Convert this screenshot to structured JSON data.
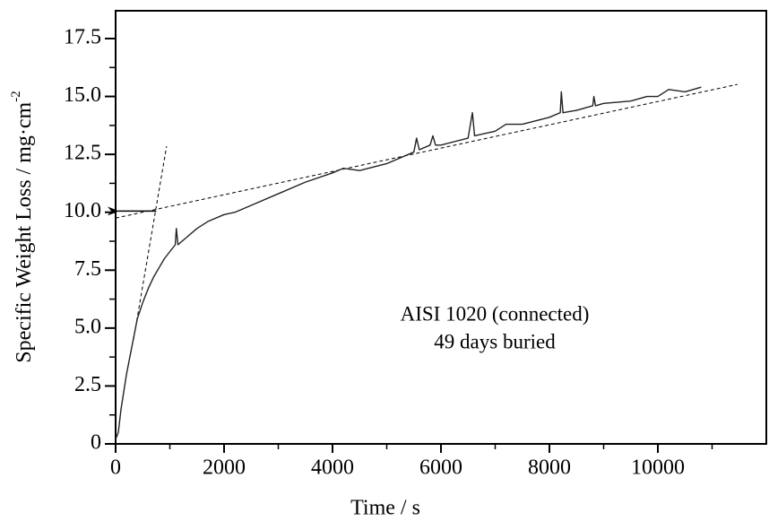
{
  "chart_data": {
    "type": "line",
    "xlabel": "Time / s",
    "ylabel": "Specific Weight Loss / mg·cm",
    "ylabel_superscript": "-2",
    "annotations": [
      "AISI 1020 (connected)",
      "49 days buried"
    ],
    "xlim": [
      0,
      12000
    ],
    "ylim": [
      0,
      18.7
    ],
    "xticks": [
      0,
      2000,
      4000,
      6000,
      8000,
      10000
    ],
    "xminorticks": [
      1000,
      3000,
      5000,
      7000,
      9000,
      11000
    ],
    "yticks": [
      0,
      2.5,
      {
        "value": 5,
        "label": "5.0"
      },
      7.5,
      {
        "value": 10,
        "label": "10.0"
      },
      12.5,
      {
        "value": 15,
        "label": "15.0"
      },
      17.5
    ],
    "yminorticks": [
      1.25,
      3.75,
      6.25,
      8.75,
      11.25,
      13.75,
      16.25
    ],
    "color": "#222222",
    "x": [
      0,
      50,
      100,
      200,
      300,
      400,
      500,
      600,
      700,
      800,
      900,
      1000,
      1100,
      1120,
      1150,
      1300,
      1500,
      1700,
      2000,
      2200,
      2500,
      3000,
      3500,
      4000,
      4200,
      4500,
      5000,
      5500,
      5550,
      5600,
      5800,
      5850,
      5900,
      6000,
      6500,
      6580,
      6620,
      7000,
      7200,
      7500,
      8000,
      8200,
      8220,
      8250,
      8500,
      8800,
      8820,
      8850,
      9000,
      9500,
      9800,
      10000,
      10200,
      10500,
      10800
    ],
    "values": [
      0.2,
      0.5,
      1.5,
      3.0,
      4.2,
      5.4,
      6.1,
      6.7,
      7.2,
      7.6,
      8.0,
      8.3,
      8.6,
      9.3,
      8.6,
      8.9,
      9.3,
      9.6,
      9.9,
      10.0,
      10.3,
      10.8,
      11.3,
      11.7,
      11.9,
      11.8,
      12.1,
      12.6,
      13.2,
      12.7,
      12.9,
      13.3,
      12.9,
      12.9,
      13.2,
      14.3,
      13.3,
      13.5,
      13.8,
      13.8,
      14.1,
      14.3,
      15.2,
      14.3,
      14.4,
      14.6,
      15.0,
      14.6,
      14.7,
      14.8,
      15.0,
      15.0,
      15.3,
      15.2,
      15.4
    ],
    "fit_lines": [
      {
        "x": [
          0,
          11466
        ],
        "values": [
          9.75,
          15.52
        ]
      },
      {
        "x": [
          330,
          940
        ],
        "values": [
          4.5,
          12.85
        ]
      }
    ],
    "arrow": {
      "x": [
        750,
        50
      ],
      "values": [
        10.05,
        10.05
      ]
    }
  }
}
